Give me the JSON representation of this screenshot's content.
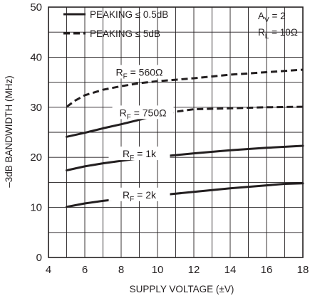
{
  "chart_data": {
    "type": "line",
    "xlabel": "SUPPLY VOLTAGE (±V)",
    "ylabel": "–3dB BANDWIDTH (MHz)",
    "xlim": [
      4,
      18
    ],
    "ylim": [
      0,
      50
    ],
    "xticks": [
      "4",
      "6",
      "8",
      "10",
      "12",
      "14",
      "16",
      "18"
    ],
    "yticks": [
      "0",
      "10",
      "20",
      "30",
      "40",
      "50"
    ],
    "grid": true,
    "colors": {
      "line": "#231f20",
      "grid": "#231f20",
      "background": "#ffffff"
    },
    "legend": {
      "placement": "top-left",
      "entries": [
        {
          "text": "PEAKING ≤ 0.5dB",
          "style": "solid"
        },
        {
          "text": "PEAKING ≤ 5dB",
          "style": "dashed"
        }
      ]
    },
    "conditions": [
      {
        "base": "A",
        "sub": "V",
        "rest": " = 2"
      },
      {
        "base": "R",
        "sub": "L",
        "rest": " = 10Ω"
      }
    ],
    "curve_labels": [
      {
        "base": "R",
        "sub": "F",
        "rest": " = 560Ω",
        "x": 9.0,
        "y": 36.6
      },
      {
        "base": "R",
        "sub": "F",
        "rest": " = 750Ω",
        "x": 9.2,
        "y": 28.5
      },
      {
        "base": "R",
        "sub": "F",
        "rest": " = 1k",
        "x": 9.0,
        "y": 20.3
      },
      {
        "base": "R",
        "sub": "F",
        "rest": " = 2k",
        "x": 9.0,
        "y": 12.1
      }
    ],
    "series": [
      {
        "segments": [
          {
            "style": "dashed",
            "points": [
              [
                5,
                30.1
              ],
              [
                5.5,
                31.4
              ],
              [
                6,
                32.4
              ],
              [
                7,
                33.5
              ],
              [
                8,
                34.2
              ],
              [
                9,
                34.8
              ],
              [
                10,
                35.2
              ],
              [
                12,
                35.8
              ],
              [
                14,
                36.5
              ],
              [
                16,
                37.0
              ],
              [
                18,
                37.5
              ]
            ]
          }
        ]
      },
      {
        "segments": [
          {
            "style": "solid",
            "points": [
              [
                5,
                24.1
              ],
              [
                6,
                24.9
              ],
              [
                7,
                25.8
              ],
              [
                8,
                26.6
              ],
              [
                9,
                27.5
              ],
              [
                10,
                28.4
              ]
            ]
          },
          {
            "style": "dashed",
            "points": [
              [
                10,
                28.4
              ],
              [
                11,
                29.1
              ],
              [
                12,
                29.6
              ],
              [
                14,
                29.8
              ],
              [
                16,
                30.0
              ],
              [
                18,
                30.1
              ]
            ]
          }
        ]
      },
      {
        "segments": [
          {
            "style": "solid",
            "points": [
              [
                5,
                17.4
              ],
              [
                6,
                18.2
              ],
              [
                7,
                18.8
              ],
              [
                8,
                19.3
              ],
              [
                9,
                19.8
              ],
              [
                10,
                20.1
              ],
              [
                12,
                20.8
              ],
              [
                14,
                21.4
              ],
              [
                16,
                21.9
              ],
              [
                17,
                22.1
              ],
              [
                18,
                22.3
              ]
            ]
          }
        ]
      },
      {
        "segments": [
          {
            "style": "solid",
            "points": [
              [
                5,
                10.1
              ],
              [
                6,
                10.8
              ],
              [
                7,
                11.3
              ],
              [
                8,
                11.7
              ],
              [
                9,
                12.1
              ],
              [
                10,
                12.4
              ],
              [
                12,
                13.1
              ],
              [
                14,
                13.8
              ],
              [
                16,
                14.4
              ],
              [
                17,
                14.7
              ],
              [
                18,
                14.8
              ]
            ]
          }
        ]
      }
    ]
  }
}
